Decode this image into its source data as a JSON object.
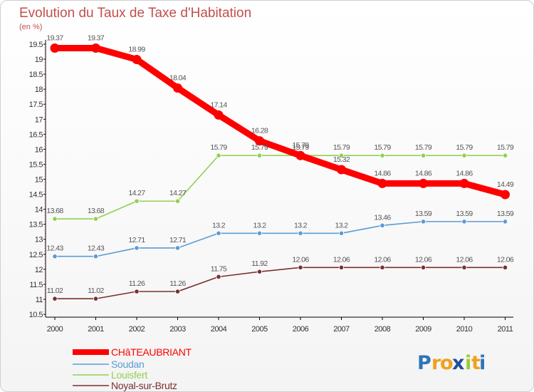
{
  "chart_data": {
    "type": "line",
    "title": "Evolution du Taux de Taxe d'Habitation",
    "subtitle": "(en %)",
    "categories": [
      "2000",
      "2001",
      "2002",
      "2003",
      "2004",
      "2005",
      "2006",
      "2007",
      "2008",
      "2009",
      "2010",
      "2011"
    ],
    "ylim": [
      10.5,
      19.5
    ],
    "yticks": [
      "10.5",
      "11",
      "11.5",
      "12",
      "12.5",
      "13",
      "13.5",
      "14",
      "14.5",
      "15",
      "15.5",
      "16",
      "16.5",
      "17",
      "17.5",
      "18",
      "18.5",
      "19",
      "19.5"
    ],
    "grid": false,
    "legend_position": "bottom-left",
    "series": [
      {
        "name": "CHâTEAUBRIANT",
        "color": "#ff0000",
        "values": [
          19.37,
          19.37,
          18.99,
          18.04,
          17.14,
          16.28,
          15.79,
          15.32,
          14.86,
          14.86,
          14.86,
          14.49
        ],
        "labels": [
          "19.37",
          "19.37",
          "18.99",
          "18.04",
          "17.14",
          "16.28",
          "15.79",
          "15.32",
          "14.86",
          "14.86",
          "14.86",
          "14.49"
        ]
      },
      {
        "name": "Soudan",
        "color": "#5b9bd5",
        "values": [
          12.43,
          12.43,
          12.71,
          12.71,
          13.2,
          13.2,
          13.2,
          13.2,
          13.46,
          13.59,
          13.59,
          13.59
        ],
        "labels": [
          "12.43",
          "12.43",
          "12.71",
          "12.71",
          "13.2",
          "13.2",
          "13.2",
          "13.2",
          "13.46",
          "13.59",
          "13.59",
          "13.59"
        ]
      },
      {
        "name": "Louisfert",
        "color": "#92d050",
        "values": [
          13.68,
          13.68,
          14.27,
          14.27,
          15.79,
          15.79,
          15.79,
          15.79,
          15.79,
          15.79,
          15.79,
          15.79
        ],
        "labels": [
          "13.68",
          "13.68",
          "14.27",
          "14.27",
          "15.79",
          "15.79",
          "15.79",
          "15.79",
          "15.79",
          "15.79",
          "15.79",
          "15.79"
        ]
      },
      {
        "name": "Noyal-sur-Brutz",
        "color": "#7b2f2f",
        "values": [
          11.02,
          11.02,
          11.26,
          11.26,
          11.75,
          11.92,
          12.06,
          12.06,
          12.06,
          12.06,
          12.06,
          12.06
        ],
        "labels": [
          "11.02",
          "11.02",
          "11.26",
          "11.26",
          "11.75",
          "11.92",
          "12.06",
          "12.06",
          "12.06",
          "12.06",
          "12.06",
          "12.06"
        ]
      }
    ]
  },
  "brand": {
    "name": "Proxiti",
    "letters": [
      "P",
      "r",
      "o",
      "x",
      "i",
      "t",
      "i"
    ],
    "letter_colors": [
      "#2e75b6",
      "#f0a020",
      "#f0a020",
      "#1f4e9a",
      "#9acd32",
      "#f0a020",
      "#2e75b6"
    ]
  }
}
